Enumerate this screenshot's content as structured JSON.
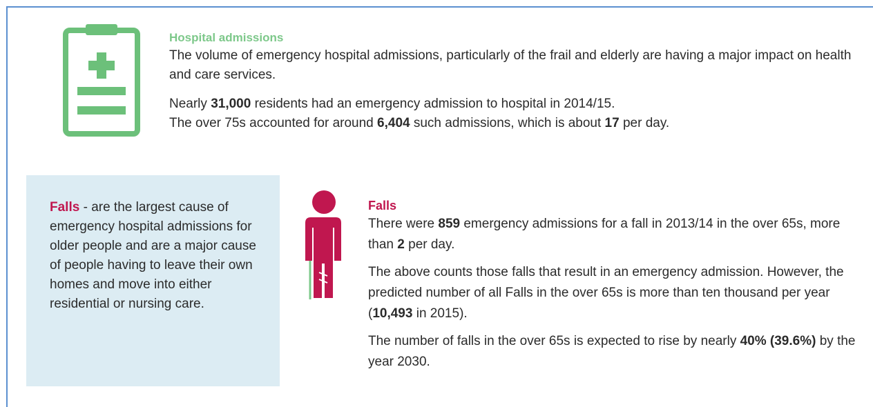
{
  "hospital": {
    "title": "Hospital admissions",
    "paragraphs": [
      [
        {
          "text": "The volume of emergency hospital admissions, particularly of the frail and elderly are having a major impact on health and care services."
        }
      ],
      [
        {
          "text": "Nearly "
        },
        {
          "text": "31,000",
          "bold": true
        },
        {
          "text": " residents had an emergency admission to hospital in 2014/15."
        }
      ],
      [
        {
          "text": "The over 75s accounted for around "
        },
        {
          "text": "6,404",
          "bold": true
        },
        {
          "text": " such admissions, which is about "
        },
        {
          "text": "17",
          "bold": true
        },
        {
          "text": " per day."
        }
      ]
    ]
  },
  "sidebar": {
    "paragraphs": [
      [
        {
          "text": "Falls",
          "bold": true,
          "color": "#c0174f"
        },
        {
          "text": " - are the largest cause of emergency hospital admissions for older people and are a major cause of people having to leave their own homes and move into either residential or nursing care."
        }
      ]
    ]
  },
  "falls": {
    "title": "Falls",
    "paragraphs": [
      [
        {
          "text": "There were "
        },
        {
          "text": "859",
          "bold": true
        },
        {
          "text": " emergency admissions for a fall in 2013/14 in the over 65s, more than "
        },
        {
          "text": "2",
          "bold": true
        },
        {
          "text": " per day."
        }
      ],
      [
        {
          "text": "The above counts those falls that result in an emergency admission. However, the predicted number of all Falls in the over 65s is more than ten thousand per year ("
        },
        {
          "text": "10,493",
          "bold": true
        },
        {
          "text": " in 2015)."
        }
      ],
      [
        {
          "text": "The number of falls in the over 65s is expected to rise by nearly "
        },
        {
          "text": "40% (39.6%)",
          "bold": true
        },
        {
          "text": " by the year 2030."
        }
      ]
    ]
  }
}
